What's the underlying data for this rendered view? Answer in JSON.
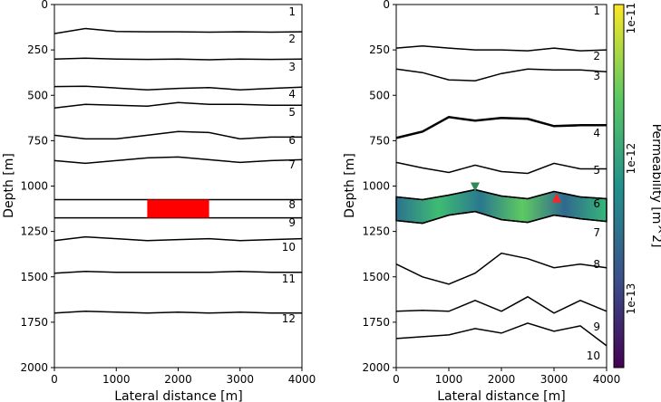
{
  "chart_data": [
    {
      "type": "line",
      "title": "",
      "xlabel": "Lateral distance [m]",
      "ylabel": "Depth [m]",
      "xlim": [
        0,
        4000
      ],
      "ylim": [
        2000,
        0
      ],
      "xticks": [
        "0",
        "1000",
        "2000",
        "3000",
        "4000"
      ],
      "yticks": [
        "0",
        "250",
        "500",
        "750",
        "1000",
        "1250",
        "1500",
        "1750",
        "2000"
      ],
      "layer_labels": [
        "1",
        "2",
        "3",
        "4",
        "5",
        "6",
        "7",
        "8",
        "9",
        "10",
        "11",
        "12"
      ],
      "series": [
        {
          "name": "interface-1",
          "x": [
            0,
            500,
            1000,
            1500,
            2000,
            2500,
            3000,
            3500,
            4000
          ],
          "y": [
            160,
            132,
            148,
            150,
            150,
            152,
            150,
            152,
            150
          ]
        },
        {
          "name": "interface-2",
          "x": [
            0,
            500,
            1000,
            1500,
            2000,
            2500,
            3000,
            3500,
            4000
          ],
          "y": [
            300,
            296,
            300,
            302,
            300,
            304,
            300,
            302,
            300
          ]
        },
        {
          "name": "interface-3",
          "x": [
            0,
            500,
            1000,
            1500,
            2000,
            2500,
            3000,
            3500,
            4000
          ],
          "y": [
            452,
            450,
            460,
            470,
            462,
            458,
            470,
            462,
            455
          ]
        },
        {
          "name": "interface-4",
          "x": [
            0,
            500,
            1000,
            1500,
            2000,
            2500,
            3000,
            3500,
            4000
          ],
          "y": [
            570,
            550,
            555,
            560,
            540,
            550,
            550,
            555,
            555
          ]
        },
        {
          "name": "interface-5",
          "x": [
            0,
            500,
            1000,
            1500,
            2000,
            2500,
            3000,
            3500,
            4000
          ],
          "y": [
            720,
            740,
            740,
            720,
            700,
            705,
            740,
            730,
            730
          ]
        },
        {
          "name": "interface-6",
          "x": [
            0,
            500,
            1000,
            1500,
            2000,
            2500,
            3000,
            3500,
            4000
          ],
          "y": [
            860,
            875,
            860,
            845,
            840,
            855,
            870,
            860,
            855
          ]
        },
        {
          "name": "interface-7",
          "x": [
            0,
            4000
          ],
          "y": [
            1075,
            1075
          ]
        },
        {
          "name": "interface-8",
          "x": [
            0,
            4000
          ],
          "y": [
            1175,
            1175
          ]
        },
        {
          "name": "interface-9",
          "x": [
            0,
            500,
            1000,
            1500,
            2000,
            2500,
            3000,
            3500,
            4000
          ],
          "y": [
            1300,
            1280,
            1290,
            1300,
            1295,
            1290,
            1300,
            1295,
            1290
          ]
        },
        {
          "name": "interface-10",
          "x": [
            0,
            500,
            1000,
            1500,
            2000,
            2500,
            3000,
            3500,
            4000
          ],
          "y": [
            1480,
            1470,
            1475,
            1475,
            1475,
            1475,
            1470,
            1475,
            1475
          ]
        },
        {
          "name": "interface-11",
          "x": [
            0,
            500,
            1000,
            1500,
            2000,
            2500,
            3000,
            3500,
            4000
          ],
          "y": [
            1700,
            1690,
            1695,
            1700,
            1695,
            1700,
            1695,
            1700,
            1700
          ]
        }
      ],
      "annotations": [
        {
          "type": "rectangle",
          "x": [
            1500,
            2500
          ],
          "y": [
            1075,
            1175
          ],
          "color": "#ff0000"
        }
      ]
    },
    {
      "type": "heatmap",
      "title": "",
      "xlabel": "Lateral distance [m]",
      "ylabel": "Depth [m]",
      "xlim": [
        0,
        4000
      ],
      "ylim": [
        2000,
        0
      ],
      "xticks": [
        "0",
        "1000",
        "2000",
        "3000",
        "4000"
      ],
      "yticks": [
        "0",
        "250",
        "500",
        "750",
        "1000",
        "1250",
        "1500",
        "1750",
        "2000"
      ],
      "layer_labels": [
        "1",
        "2",
        "3",
        "4",
        "5",
        "6",
        "7",
        "8",
        "9",
        "10"
      ],
      "series": [
        {
          "name": "interface-1",
          "x": [
            0,
            500,
            1000,
            1500,
            2000,
            2500,
            3000,
            3500,
            4000
          ],
          "y": [
            240,
            228,
            240,
            250,
            250,
            255,
            240,
            255,
            250
          ]
        },
        {
          "name": "interface-2",
          "x": [
            0,
            500,
            1000,
            1500,
            2000,
            2500,
            3000,
            3500,
            4000
          ],
          "y": [
            355,
            375,
            415,
            420,
            380,
            355,
            360,
            360,
            370
          ]
        },
        {
          "name": "interface-3",
          "x": [
            0,
            500,
            1000,
            1500,
            2000,
            2500,
            3000,
            3500,
            4000
          ],
          "y": [
            735,
            700,
            620,
            640,
            625,
            630,
            670,
            665,
            665
          ]
        },
        {
          "name": "interface-4",
          "x": [
            0,
            500,
            1000,
            1500,
            2000,
            2500,
            3000,
            3500,
            4000
          ],
          "y": [
            870,
            900,
            925,
            885,
            920,
            930,
            875,
            905,
            905
          ]
        },
        {
          "name": "interface-5",
          "x": [
            0,
            500,
            1000,
            1500,
            2000,
            2500,
            3000,
            3500,
            4000
          ],
          "y": [
            1060,
            1075,
            1050,
            1020,
            1055,
            1070,
            1030,
            1060,
            1070
          ]
        },
        {
          "name": "interface-6",
          "x": [
            0,
            500,
            1000,
            1500,
            2000,
            2500,
            3000,
            3500,
            4000
          ],
          "y": [
            1190,
            1205,
            1160,
            1140,
            1185,
            1200,
            1160,
            1180,
            1195
          ]
        },
        {
          "name": "interface-7",
          "x": [
            0,
            500,
            1000,
            1500,
            2000,
            2500,
            3000,
            3500,
            4000
          ],
          "y": [
            1430,
            1500,
            1540,
            1480,
            1370,
            1400,
            1450,
            1430,
            1450
          ]
        },
        {
          "name": "interface-8",
          "x": [
            0,
            500,
            1000,
            1500,
            2000,
            2500,
            3000,
            3500,
            4000
          ],
          "y": [
            1690,
            1685,
            1690,
            1630,
            1690,
            1610,
            1700,
            1630,
            1690
          ]
        },
        {
          "name": "interface-9",
          "x": [
            0,
            500,
            1000,
            1500,
            2000,
            2500,
            3000,
            3500,
            4000
          ],
          "y": [
            1840,
            1830,
            1820,
            1785,
            1810,
            1755,
            1800,
            1770,
            1880
          ]
        }
      ],
      "markers": [
        {
          "shape": "triangle-down",
          "x": 1500,
          "y": 1005,
          "color": "#2e8b57"
        },
        {
          "shape": "triangle-up",
          "x": 3050,
          "y": 1065,
          "color": "#ff2222"
        }
      ],
      "colorbar": {
        "label": "Permeability [m^2]",
        "scale": "log",
        "range": [
          3e-14,
          1e-11
        ],
        "ticks": [
          "1e-11",
          "1e-12",
          "1e-13"
        ],
        "cmap": "viridis"
      }
    }
  ]
}
